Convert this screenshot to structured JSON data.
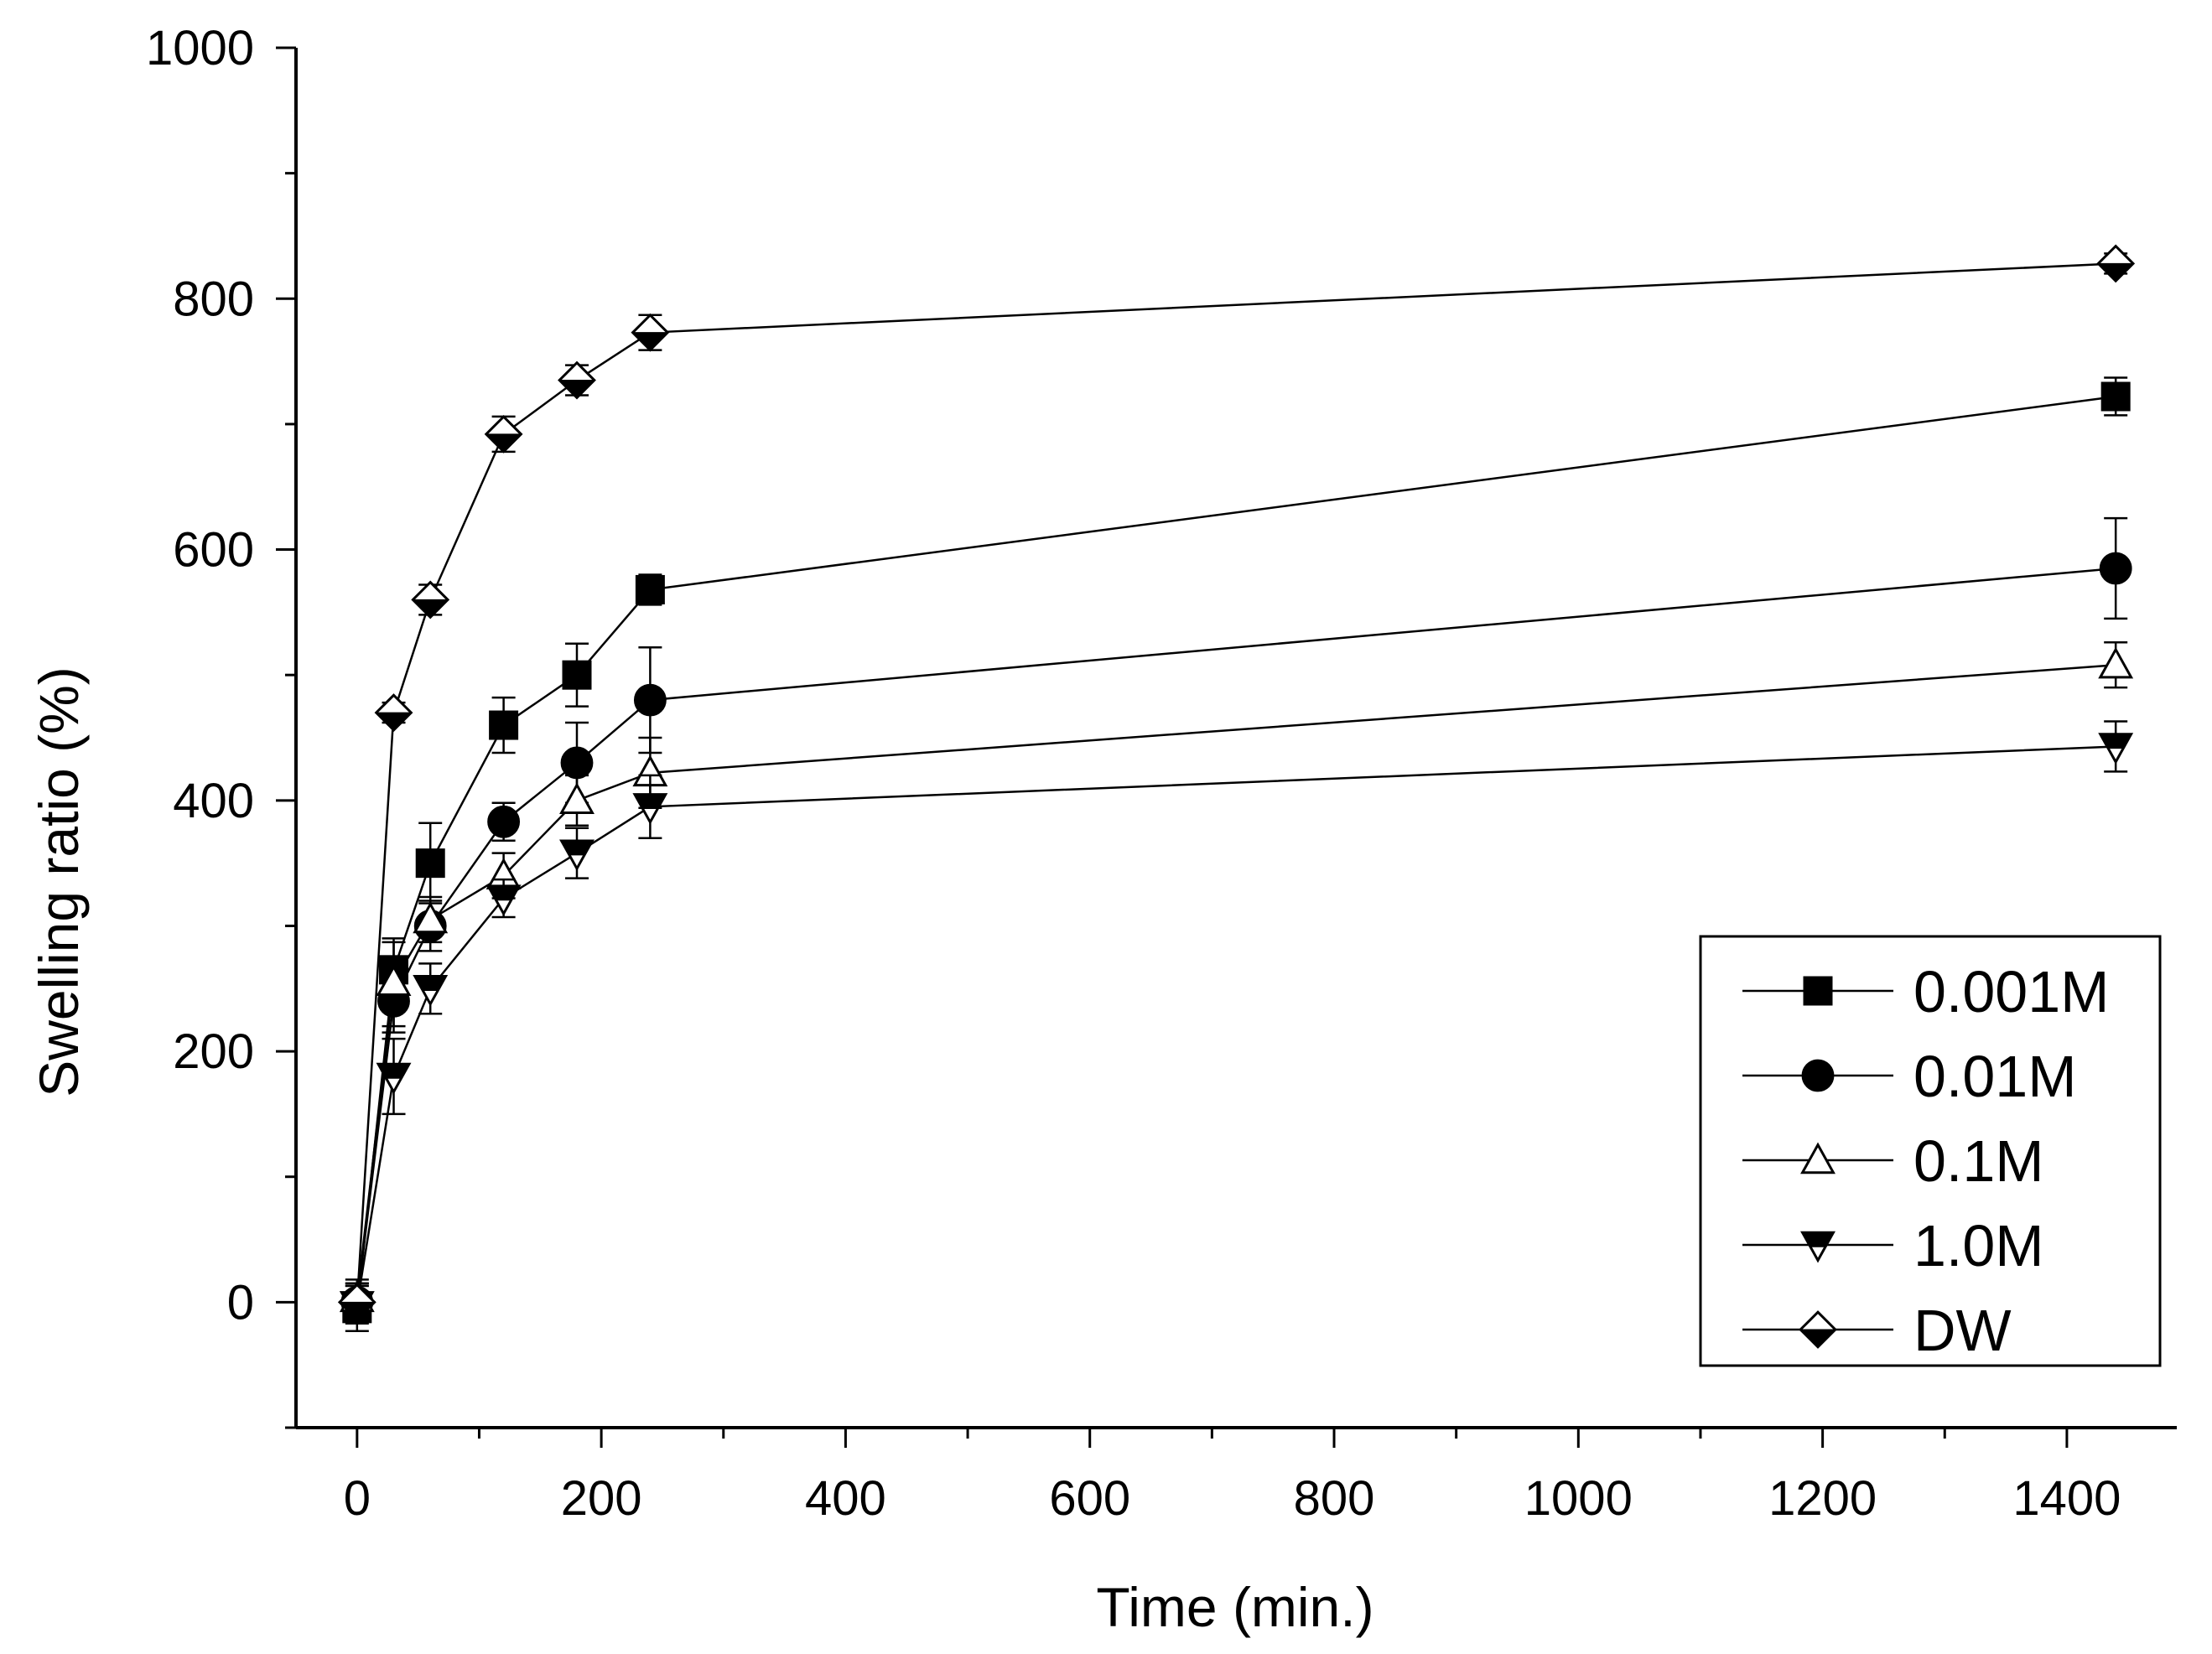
{
  "chart_data": {
    "type": "line",
    "title": "",
    "xlabel": "Time (min.)",
    "ylabel": "Swelling ratio (%)",
    "xlim": [
      -50,
      1490
    ],
    "ylim": [
      -100,
      1000
    ],
    "x_ticks": [
      0,
      200,
      400,
      600,
      800,
      1000,
      1200,
      1400
    ],
    "x_tick_labels": [
      "0",
      "200",
      "400",
      "600",
      "800",
      "1000",
      "1200",
      "1400"
    ],
    "y_ticks": [
      0,
      200,
      400,
      600,
      800,
      1000
    ],
    "y_tick_labels": [
      "0",
      "200",
      "400",
      "600",
      "800",
      "1000"
    ],
    "grid": false,
    "legend_position": "bottom-right",
    "x": [
      0,
      30,
      60,
      120,
      180,
      240,
      1440
    ],
    "series": [
      {
        "name": "0.001M",
        "marker": "square-filled",
        "values": [
          -5,
          265,
          350,
          460,
          500,
          568,
          722
        ],
        "errors": [
          18,
          22,
          32,
          22,
          25,
          12,
          15
        ]
      },
      {
        "name": "0.01M",
        "marker": "circle-filled",
        "values": [
          0,
          240,
          300,
          383,
          430,
          480,
          585
        ],
        "errors": [
          15,
          25,
          20,
          15,
          32,
          42,
          40
        ]
      },
      {
        "name": "0.1M",
        "marker": "triangle-up-open",
        "values": [
          3,
          255,
          305,
          340,
          400,
          422,
          508
        ],
        "errors": [
          15,
          35,
          18,
          18,
          20,
          28,
          18
        ]
      },
      {
        "name": "1.0M",
        "marker": "triangle-down-mixed",
        "values": [
          -2,
          180,
          250,
          322,
          358,
          395,
          443
        ],
        "errors": [
          15,
          30,
          20,
          15,
          20,
          25,
          20
        ]
      },
      {
        "name": "DW",
        "marker": "diamond-half",
        "values": [
          0,
          470,
          560,
          692,
          735,
          773,
          828
        ],
        "errors": [
          15,
          8,
          12,
          14,
          12,
          14,
          8
        ]
      }
    ]
  }
}
